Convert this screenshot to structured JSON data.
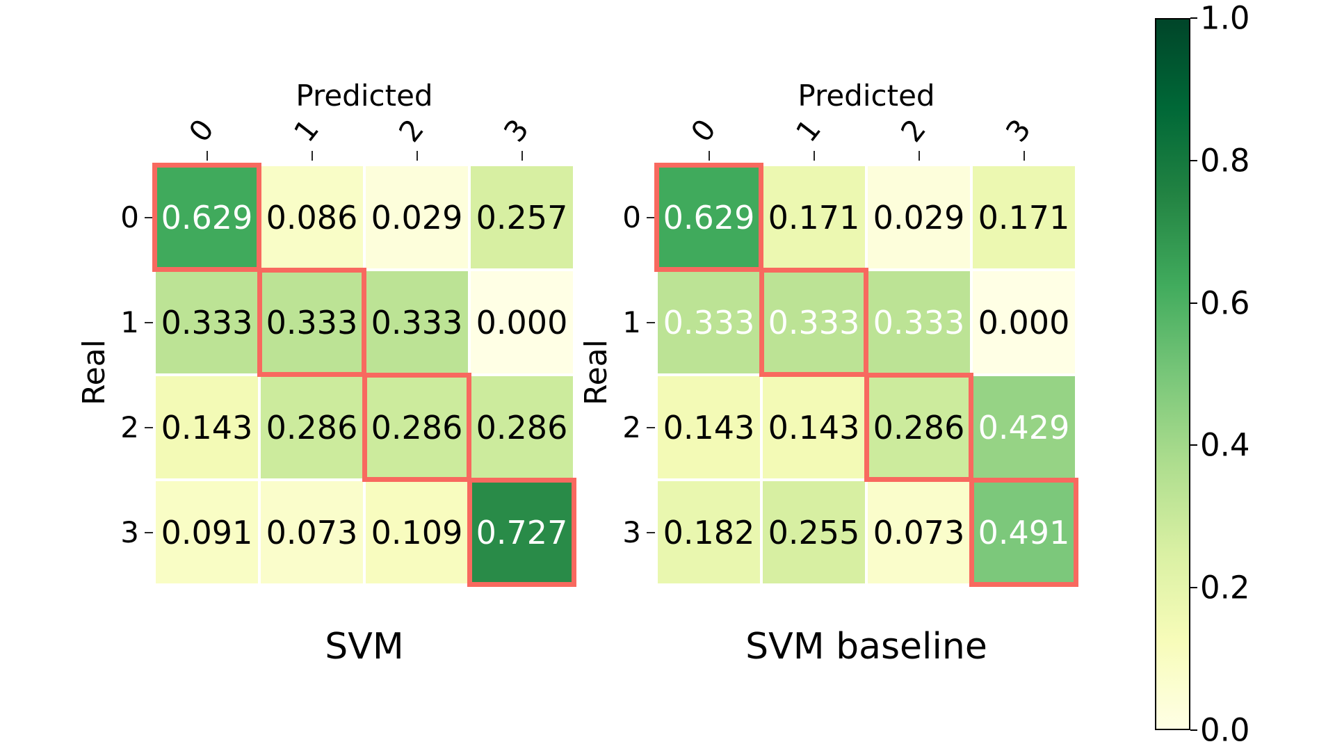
{
  "colors": {
    "background": "#ffffff",
    "diagonal_highlight": "#F8695F",
    "cell_text_dark": "#000000",
    "cell_text_light": "#ffffff",
    "axis_text": "#000000",
    "tick_mark": "#262626",
    "colorbar_border": "#000000",
    "colormap": "YlGn",
    "colormap_anchors": [
      "#ffffe5",
      "#f7fcb9",
      "#d9f0a3",
      "#addd8e",
      "#78c679",
      "#41ab5d",
      "#238443",
      "#006837",
      "#004529"
    ]
  },
  "chart_data": [
    {
      "type": "heatmap",
      "title": "SVM",
      "xlabel": "Predicted",
      "ylabel": "Real",
      "x_ticklabels": [
        "0",
        "1",
        "2",
        "3"
      ],
      "y_ticklabels": [
        "0",
        "1",
        "2",
        "3"
      ],
      "values": [
        [
          0.629,
          0.086,
          0.029,
          0.257
        ],
        [
          0.333,
          0.333,
          0.333,
          0.0
        ],
        [
          0.143,
          0.286,
          0.286,
          0.286
        ],
        [
          0.091,
          0.073,
          0.109,
          0.727
        ]
      ],
      "value_decimals": 3,
      "diagonal_outlined": true,
      "vmin": 0.0,
      "vmax": 1.0,
      "text_color_rule": "white_if_value_gt_half_of_matrix_max"
    },
    {
      "type": "heatmap",
      "title": "SVM baseline",
      "xlabel": "Predicted",
      "ylabel": "Real",
      "x_ticklabels": [
        "0",
        "1",
        "2",
        "3"
      ],
      "y_ticklabels": [
        "0",
        "1",
        "2",
        "3"
      ],
      "values": [
        [
          0.629,
          0.171,
          0.029,
          0.171
        ],
        [
          0.333,
          0.333,
          0.333,
          0.0
        ],
        [
          0.143,
          0.143,
          0.286,
          0.429
        ],
        [
          0.182,
          0.255,
          0.073,
          0.491
        ]
      ],
      "value_decimals": 3,
      "diagonal_outlined": true,
      "vmin": 0.0,
      "vmax": 1.0,
      "text_color_rule": "white_if_value_gt_half_of_matrix_max"
    }
  ],
  "colorbar": {
    "orientation": "vertical",
    "vmin": 0.0,
    "vmax": 1.0,
    "tick_labels": [
      "1.0",
      "0.8",
      "0.6",
      "0.4",
      "0.2",
      "0.0"
    ]
  }
}
